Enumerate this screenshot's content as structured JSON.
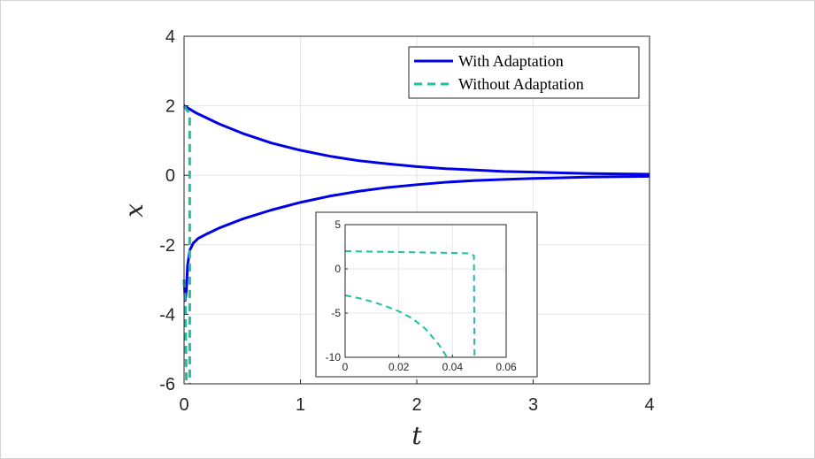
{
  "chart_data": [
    {
      "type": "line",
      "title": "",
      "xlabel": "t",
      "ylabel": "x",
      "xlim": [
        0,
        4
      ],
      "ylim": [
        -6,
        4
      ],
      "xticks": [
        0,
        1,
        2,
        3,
        4
      ],
      "yticks": [
        -6,
        -4,
        -2,
        0,
        2,
        4
      ],
      "grid": true,
      "legend": "top-right",
      "colors": {
        "with": "#0000e6",
        "without": "#1fbf9f"
      },
      "series": [
        {
          "name": "With Adaptation",
          "style": "solid",
          "x": [
            0,
            0.1,
            0.2,
            0.3,
            0.5,
            0.75,
            1.0,
            1.25,
            1.5,
            1.75,
            2.0,
            2.25,
            2.5,
            2.75,
            3.0,
            3.5,
            4.0
          ],
          "y": [
            2.0,
            1.8,
            1.64,
            1.48,
            1.21,
            0.93,
            0.72,
            0.55,
            0.42,
            0.33,
            0.25,
            0.19,
            0.15,
            0.11,
            0.09,
            0.05,
            0.03
          ]
        },
        {
          "name": "",
          "style": "solid",
          "x": [
            0,
            0.01,
            0.02,
            0.03,
            0.05,
            0.08,
            0.12,
            0.2,
            0.3,
            0.5,
            0.75,
            1.0,
            1.25,
            1.5,
            1.75,
            2.0,
            2.25,
            2.5,
            2.75,
            3.0,
            3.5,
            4.0
          ],
          "y": [
            -3.0,
            -3.6,
            -3.3,
            -2.6,
            -2.15,
            -1.95,
            -1.82,
            -1.68,
            -1.52,
            -1.26,
            -1.0,
            -0.78,
            -0.6,
            -0.46,
            -0.35,
            -0.27,
            -0.2,
            -0.15,
            -0.12,
            -0.09,
            -0.05,
            -0.03
          ]
        },
        {
          "name": "Without Adaptation",
          "style": "dashed",
          "x": [
            0,
            0.02,
            0.04,
            0.048,
            0.049
          ],
          "y": [
            2.0,
            1.9,
            1.8,
            1.7,
            -6
          ]
        },
        {
          "name": "",
          "style": "dashed",
          "x": [
            0,
            0.01,
            0.015,
            0.02
          ],
          "y": [
            -3.0,
            -3.6,
            -4.8,
            -6
          ]
        }
      ]
    },
    {
      "type": "line",
      "title": "",
      "xlabel": "",
      "ylabel": "",
      "xlim": [
        0,
        0.06
      ],
      "ylim": [
        -10,
        5
      ],
      "xticks": [
        0,
        0.02,
        0.04,
        0.06
      ],
      "xtick_labels": [
        "0",
        "0.02",
        "0.04",
        "0.06"
      ],
      "yticks": [
        -10,
        -5,
        0,
        5
      ],
      "grid": true,
      "series": [
        {
          "name": "",
          "style": "dashed",
          "x": [
            0,
            0.01,
            0.02,
            0.03,
            0.04,
            0.046,
            0.048,
            0.0482
          ],
          "y": [
            2.0,
            1.95,
            1.9,
            1.85,
            1.8,
            1.75,
            1.5,
            -10
          ]
        },
        {
          "name": "",
          "style": "dashed",
          "x": [
            0,
            0.005,
            0.01,
            0.015,
            0.02,
            0.025,
            0.03,
            0.035,
            0.038
          ],
          "y": [
            -3.0,
            -3.3,
            -3.7,
            -4.2,
            -4.8,
            -5.6,
            -6.8,
            -8.6,
            -10
          ]
        }
      ]
    }
  ]
}
